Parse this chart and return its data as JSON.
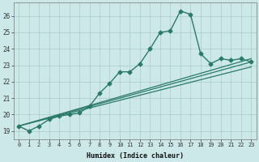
{
  "xlabel": "Humidex (Indice chaleur)",
  "bg_color": "#cce8e8",
  "grid_color": "#b0d0d0",
  "line_color": "#2a7a6a",
  "xlim": [
    -0.5,
    23.5
  ],
  "ylim": [
    18.5,
    26.8
  ],
  "yticks": [
    19,
    20,
    21,
    22,
    23,
    24,
    25,
    26
  ],
  "xticks": [
    0,
    1,
    2,
    3,
    4,
    5,
    6,
    7,
    8,
    9,
    10,
    11,
    12,
    13,
    14,
    15,
    16,
    17,
    18,
    19,
    20,
    21,
    22,
    23
  ],
  "series": [
    {
      "x": [
        0,
        1,
        2,
        3,
        4,
        5,
        6,
        7,
        8,
        9,
        10,
        11,
        12,
        13,
        14,
        15,
        16,
        17,
        18,
        19,
        20,
        21,
        22,
        23
      ],
      "y": [
        19.3,
        19.0,
        19.3,
        19.7,
        19.9,
        20.0,
        20.1,
        20.5,
        21.3,
        21.9,
        22.6,
        22.6,
        23.1,
        24.0,
        25.0,
        25.1,
        26.3,
        26.1,
        23.7,
        23.1,
        23.4,
        23.3,
        23.4,
        23.2
      ],
      "marker": "D",
      "markersize": 2.5,
      "linewidth": 1.0
    },
    {
      "x": [
        0,
        23
      ],
      "y": [
        19.3,
        23.4
      ],
      "marker": null,
      "linewidth": 0.9
    },
    {
      "x": [
        0,
        23
      ],
      "y": [
        19.3,
        23.2
      ],
      "marker": null,
      "linewidth": 0.9
    },
    {
      "x": [
        0,
        23
      ],
      "y": [
        19.3,
        22.9
      ],
      "marker": null,
      "linewidth": 0.9
    }
  ]
}
